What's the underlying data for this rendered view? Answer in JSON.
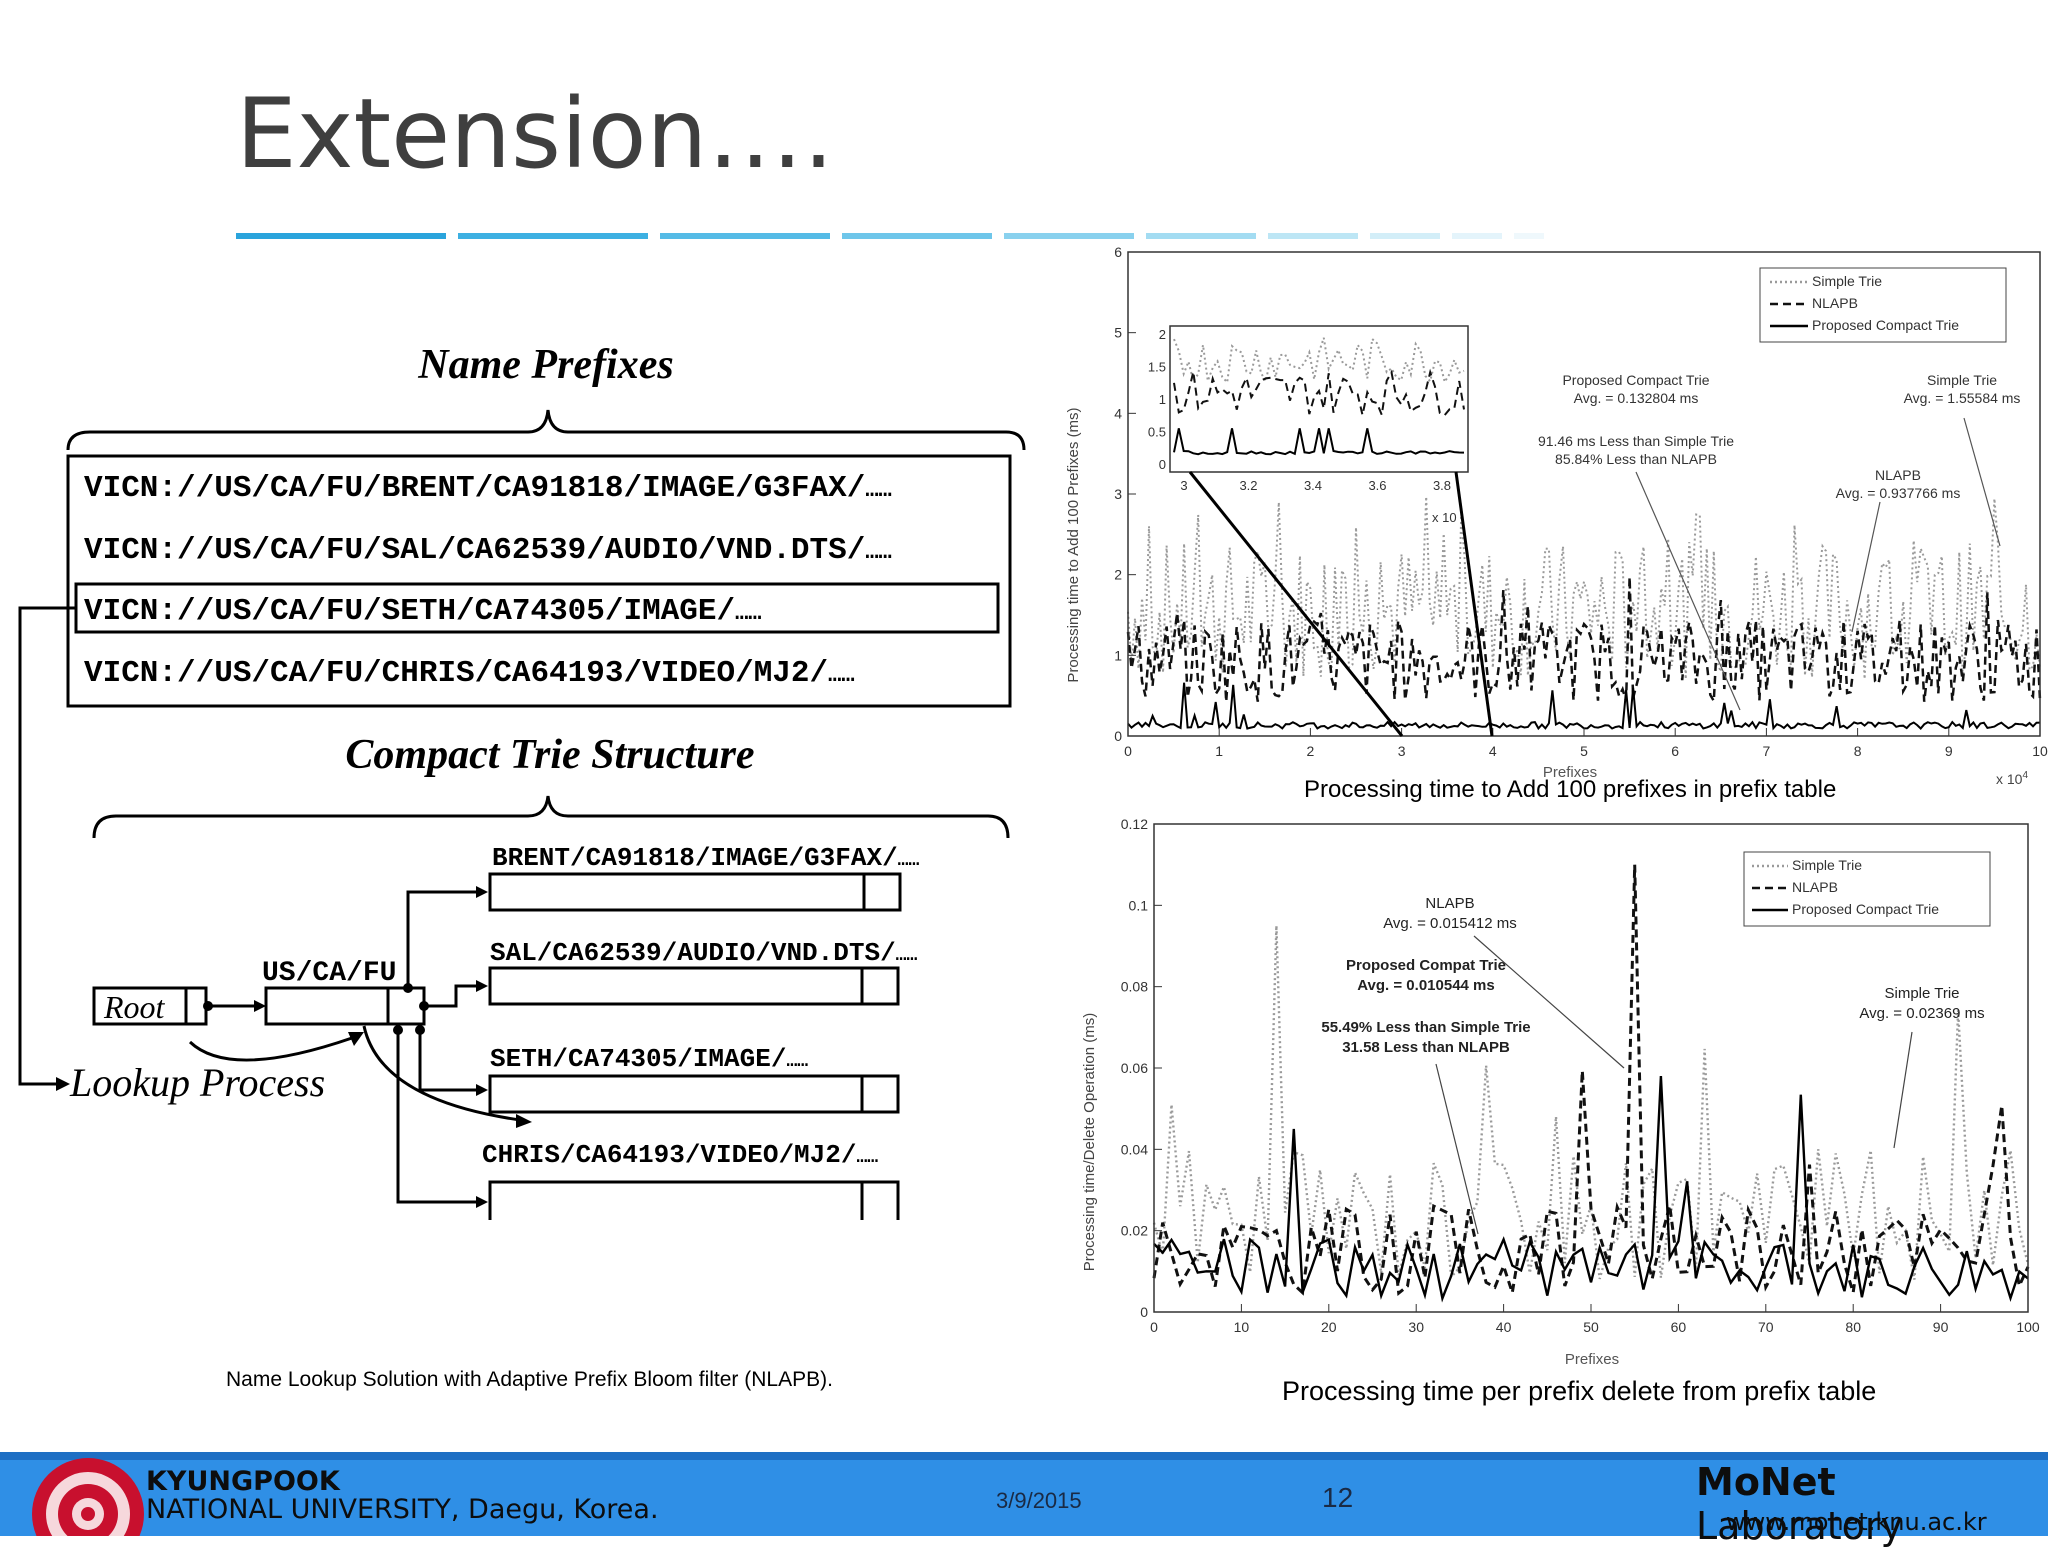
{
  "slide": {
    "title": "Extension….",
    "page_number": "12",
    "date": "3/9/2015"
  },
  "diagram": {
    "name_prefixes_title": "Name Prefixes",
    "prefixes": [
      {
        "text": "VICN://US/CA/FU/BRENT/CA91818/IMAGE/G3FAX/",
        "suffix": "……"
      },
      {
        "text": "VICN://US/CA/FU/SAL/CA62539/AUDIO/VND.DTS/",
        "suffix": "……"
      },
      {
        "text": "VICN://US/CA/FU/SETH/CA74305/IMAGE/",
        "suffix": "……"
      },
      {
        "text": "VICN://US/CA/FU/CHRIS/CA64193/VIDEO/MJ2/",
        "suffix": "……"
      }
    ],
    "trie_title": "Compact Trie Structure",
    "root_label": "Root",
    "mid_node_label": "US/CA/FU",
    "leaves": [
      {
        "text": "BRENT/CA91818/IMAGE/G3FAX/",
        "suffix": "……"
      },
      {
        "text": "SAL/CA62539/AUDIO/VND.DTS/",
        "suffix": "……"
      },
      {
        "text": "SETH/CA74305/IMAGE/",
        "suffix": "……"
      },
      {
        "text": "CHRIS/CA64193/VIDEO/MJ2/",
        "suffix": "……"
      }
    ],
    "lookup_label": "Lookup Process",
    "caption": "Name Lookup Solution with Adaptive Prefix Bloom filter (NLAPB)."
  },
  "chart_data": [
    {
      "type": "line",
      "title": "",
      "ylabel": "Processing time to Add 100 Prefixes (ms)",
      "xlabel": "Prefixes",
      "x_multiplier": "x 10",
      "x_multiplier_exp": "4",
      "xlim": [
        0,
        10
      ],
      "ylim": [
        0,
        6
      ],
      "xticks": [
        "0",
        "1",
        "2",
        "3",
        "4",
        "5",
        "6",
        "7",
        "8",
        "9",
        "10"
      ],
      "yticks": [
        "0",
        "1",
        "2",
        "3",
        "4",
        "5",
        "6"
      ],
      "legend": {
        "position": "top-right",
        "entries": [
          "Simple Trie",
          "NLAPB",
          "Proposed Compact Trie"
        ]
      },
      "series": [
        {
          "name": "Simple Trie",
          "style": "dotted",
          "mean": 1.55584
        },
        {
          "name": "NLAPB",
          "style": "dashed",
          "mean": 0.937766
        },
        {
          "name": "Proposed Compact Trie",
          "style": "solid",
          "mean": 0.132804
        }
      ],
      "annotations": [
        {
          "lines": [
            "Proposed Compact Trie",
            "Avg. = 0.132804 ms"
          ]
        },
        {
          "lines": [
            "91.46 ms Less than Simple Trie",
            "85.84% Less than NLAPB"
          ]
        },
        {
          "lines": [
            "Simple Trie",
            "Avg. = 1.55584 ms"
          ]
        },
        {
          "lines": [
            "NLAPB",
            "Avg. = 0.937766 ms"
          ]
        }
      ],
      "inset": {
        "xticks": [
          "3",
          "3.2",
          "3.4",
          "3.6",
          "3.8"
        ],
        "yticks": [
          "0",
          "0.5",
          "1",
          "1.5",
          "2"
        ],
        "x_multiplier": "x 10",
        "x_multiplier_exp": "4"
      },
      "caption": "Processing time to Add 100 prefixes in prefix table"
    },
    {
      "type": "line",
      "title": "",
      "ylabel": "Processing time/Delete Operation (ms)",
      "xlabel": "Prefixes",
      "xlim": [
        0,
        100
      ],
      "ylim": [
        0,
        0.12
      ],
      "xticks": [
        "0",
        "10",
        "20",
        "30",
        "40",
        "50",
        "60",
        "70",
        "80",
        "90",
        "100"
      ],
      "yticks": [
        "0",
        "0.02",
        "0.04",
        "0.06",
        "0.08",
        "0.1",
        "0.12"
      ],
      "legend": {
        "position": "top-right",
        "entries": [
          "Simple Trie",
          "NLAPB",
          "Proposed Compact Trie"
        ]
      },
      "series": [
        {
          "name": "Simple Trie",
          "style": "dotted",
          "mean": 0.02369
        },
        {
          "name": "NLAPB",
          "style": "dashed",
          "mean": 0.015412
        },
        {
          "name": "Proposed Compact Trie",
          "style": "solid",
          "mean": 0.010544
        }
      ],
      "annotations": [
        {
          "lines": [
            "NLAPB",
            "Avg. = 0.015412 ms"
          ]
        },
        {
          "lines": [
            "Proposed Compat Trie",
            "Avg. = 0.010544 ms"
          ]
        },
        {
          "lines": [
            "55.49% Less than Simple Trie",
            "31.58 Less than NLAPB"
          ]
        },
        {
          "lines": [
            "Simple Trie",
            "Avg. = 0.02369 ms"
          ]
        }
      ],
      "caption": "Processing time per prefix delete from prefix table"
    }
  ],
  "footer": {
    "university_line1": "KYUNGPOOK",
    "university_line2": "NATIONAL UNIVERSITY, Daegu, Korea.",
    "lab_bold": "MoNet",
    "lab_rest": " Laboratory",
    "url": "www.monet.knu.ac.kr",
    "seal_text": "KYUNGPOOK NATIONAL UNIVERSITY"
  },
  "colors": {
    "footer_blue": "#2f8fe6",
    "title_rule": "#2aa4dc",
    "seal_red": "#c8102e"
  }
}
